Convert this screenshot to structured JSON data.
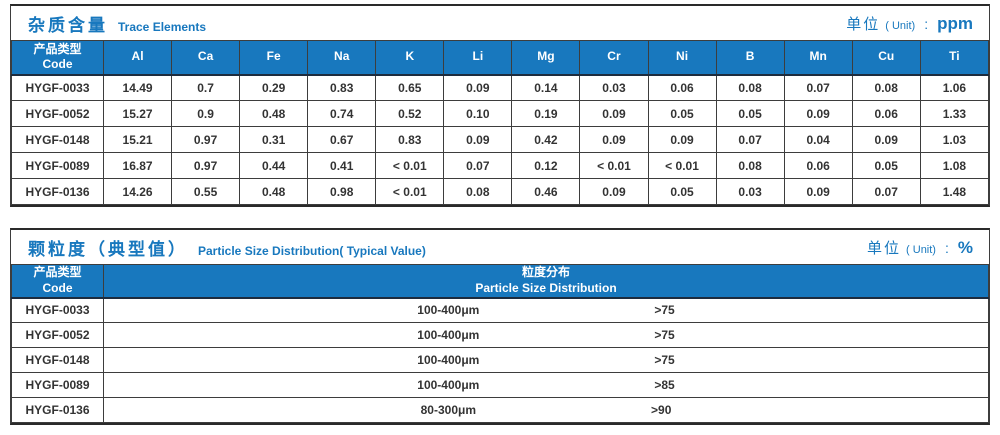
{
  "colors": {
    "header_blue": "#1878be",
    "title_blue": "#1878be",
    "border_dark": "#3d3d3d",
    "text_dark": "#333333"
  },
  "trace_table": {
    "title_zh": "杂质含量",
    "title_en": "Trace Elements",
    "unit_label_zh": "单位",
    "unit_label_en": "( Unit)",
    "unit_colon": ":",
    "unit_value": "ppm",
    "code_header_zh": "产品类型",
    "code_header_en": "Code",
    "columns": [
      "Al",
      "Ca",
      "Fe",
      "Na",
      "K",
      "Li",
      "Mg",
      "Cr",
      "Ni",
      "B",
      "Mn",
      "Cu",
      "Ti"
    ],
    "rows": [
      {
        "code": "HYGF-0033",
        "values": [
          "14.49",
          "0.7",
          "0.29",
          "0.83",
          "0.65",
          "0.09",
          "0.14",
          "0.03",
          "0.06",
          "0.08",
          "0.07",
          "0.08",
          "1.06"
        ]
      },
      {
        "code": "HYGF-0052",
        "values": [
          "15.27",
          "0.9",
          "0.48",
          "0.74",
          "0.52",
          "0.10",
          "0.19",
          "0.09",
          "0.05",
          "0.05",
          "0.09",
          "0.06",
          "1.33"
        ]
      },
      {
        "code": "HYGF-0148",
        "values": [
          "15.21",
          "0.97",
          "0.31",
          "0.67",
          "0.83",
          "0.09",
          "0.42",
          "0.09",
          "0.09",
          "0.07",
          "0.04",
          "0.09",
          "1.03"
        ]
      },
      {
        "code": "HYGF-0089",
        "values": [
          "16.87",
          "0.97",
          "0.44",
          "0.41",
          "< 0.01",
          "0.07",
          "0.12",
          "< 0.01",
          "< 0.01",
          "0.08",
          "0.06",
          "0.05",
          "1.08"
        ]
      },
      {
        "code": "HYGF-0136",
        "values": [
          "14.26",
          "0.55",
          "0.48",
          "0.98",
          "< 0.01",
          "0.08",
          "0.46",
          "0.09",
          "0.05",
          "0.03",
          "0.09",
          "0.07",
          "1.48"
        ]
      }
    ]
  },
  "particle_table": {
    "title_zh": "颗粒度（典型值）",
    "title_en": "Particle Size Distribution( Typical Value)",
    "unit_label_zh": "单位",
    "unit_label_en": "( Unit)",
    "unit_colon": ":",
    "unit_value": "%",
    "code_header_zh": "产品类型",
    "code_header_en": "Code",
    "dist_header_zh": "粒度分布",
    "dist_header_en": "Particle Size  Distribution",
    "rows": [
      {
        "code": "HYGF-0033",
        "range": "100-400μm",
        "percent": ">75"
      },
      {
        "code": "HYGF-0052",
        "range": "100-400μm",
        "percent": ">75"
      },
      {
        "code": "HYGF-0148",
        "range": "100-400μm",
        "percent": ">75"
      },
      {
        "code": "HYGF-0089",
        "range": "100-400μm",
        "percent": ">85"
      },
      {
        "code": "HYGF-0136",
        "range": "80-300μm",
        "percent": ">90"
      }
    ]
  }
}
